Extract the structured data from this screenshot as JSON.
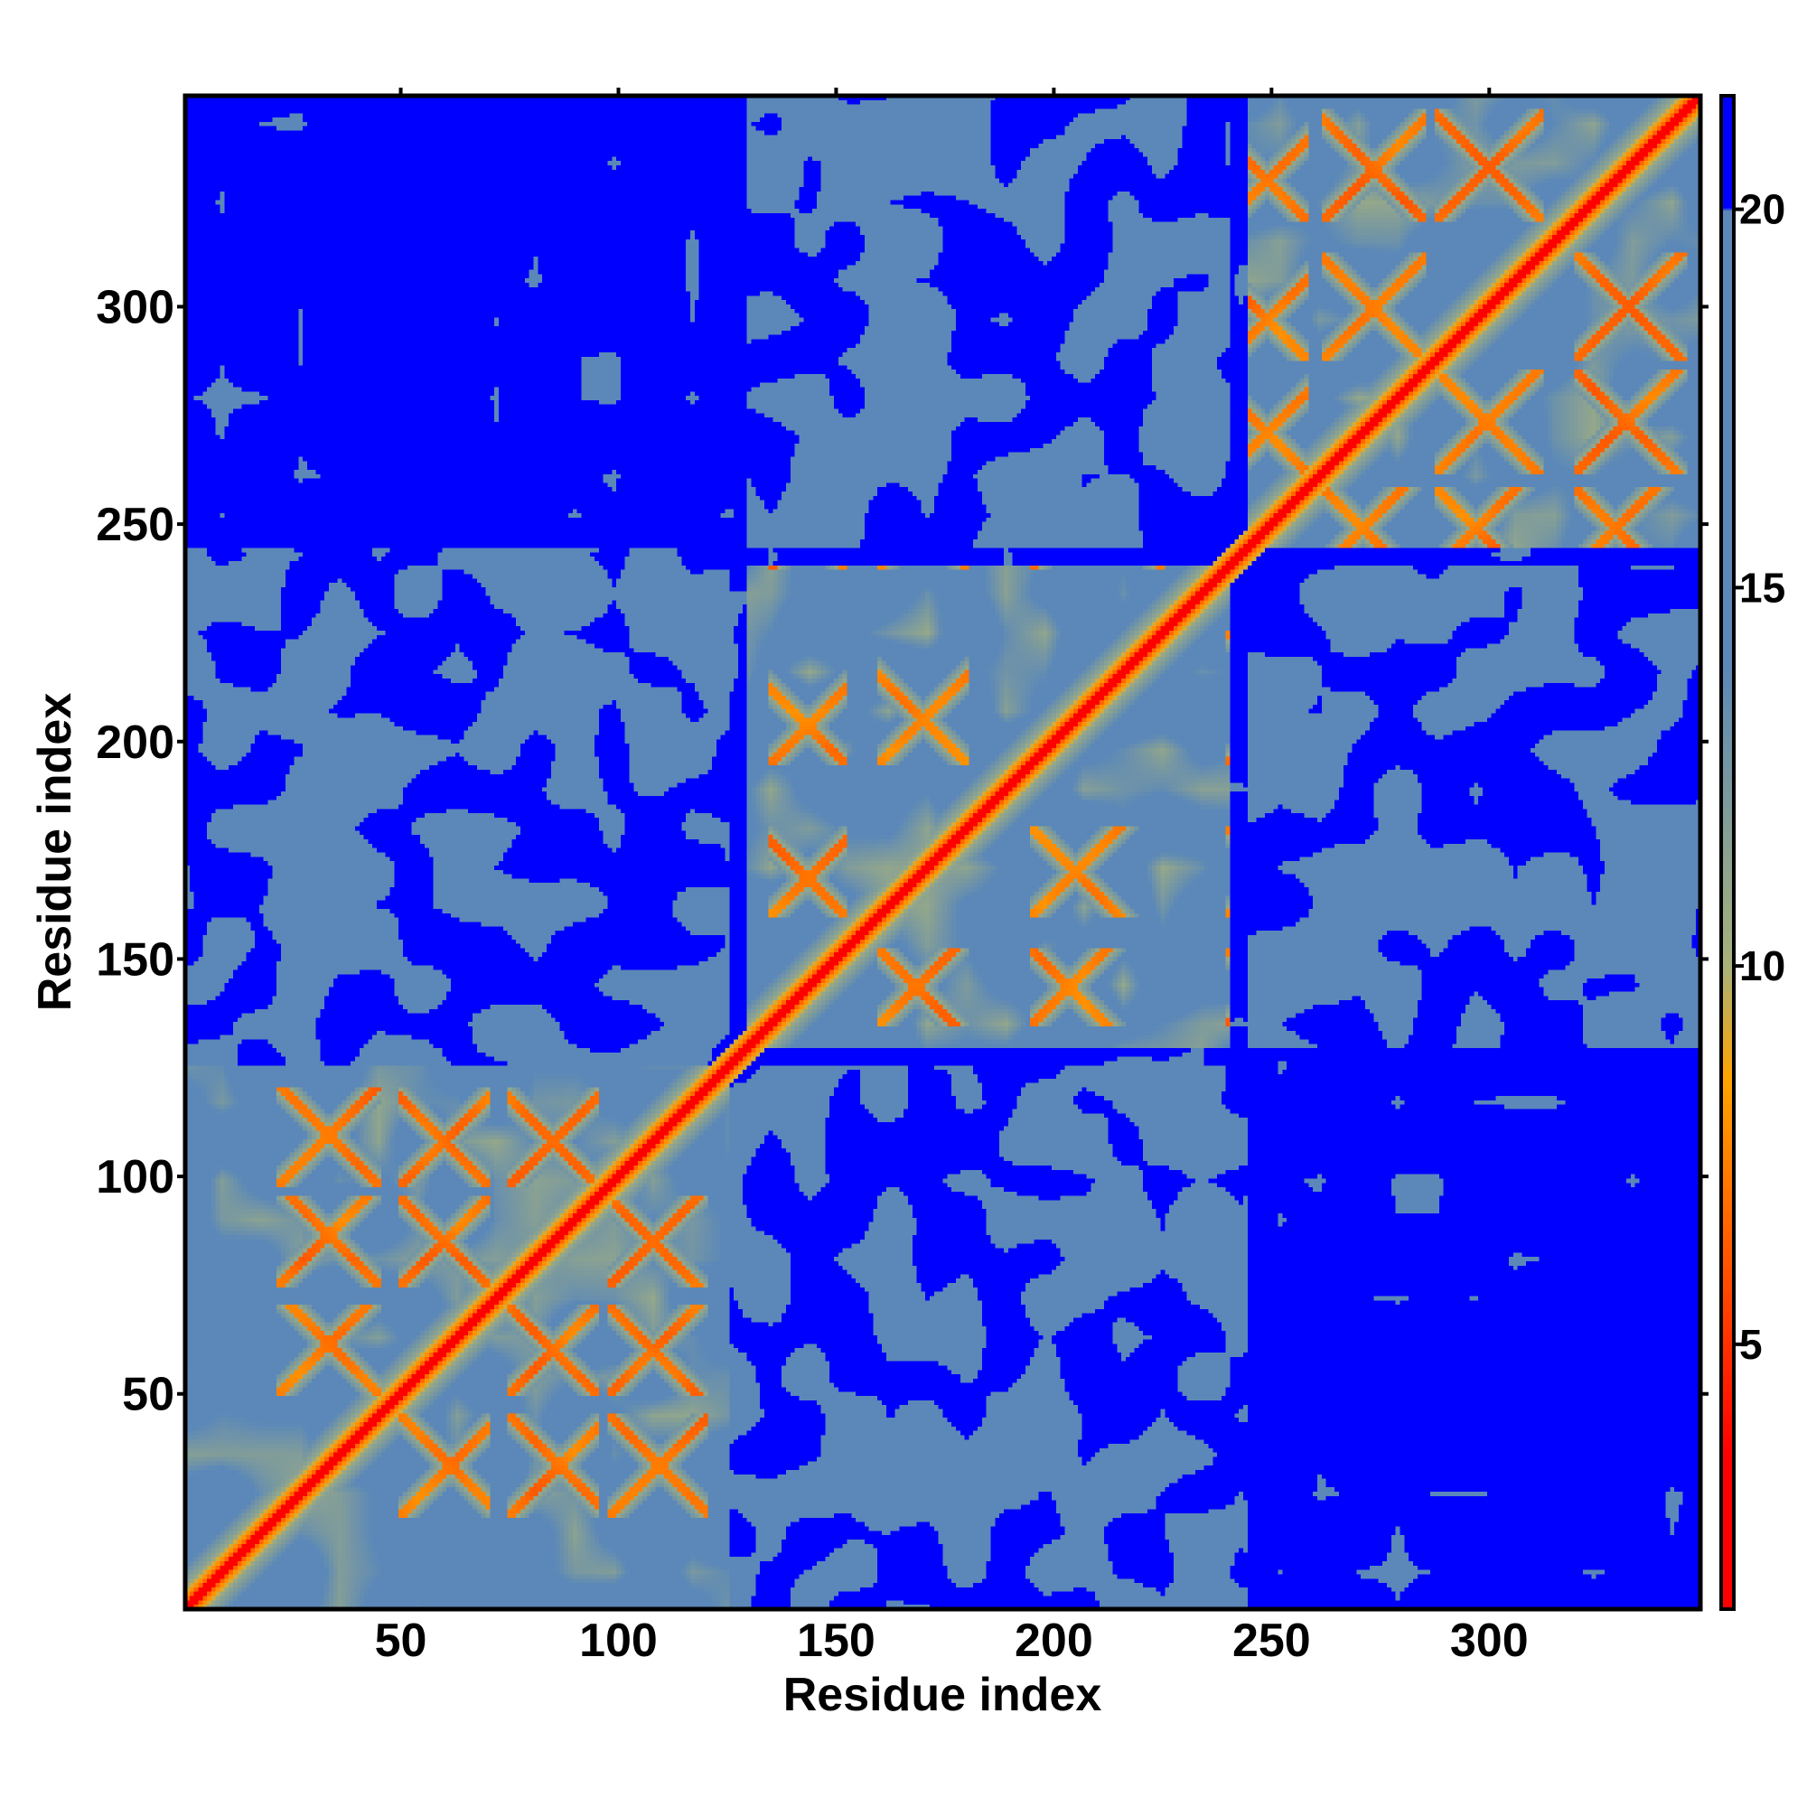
{
  "chart_data": {
    "type": "heatmap",
    "title": "",
    "xlabel": "Residue index",
    "ylabel": "Residue index",
    "x_range": [
      1,
      348
    ],
    "y_range": [
      1,
      348
    ],
    "x_ticks": [
      50,
      100,
      150,
      200,
      250,
      300
    ],
    "y_ticks": [
      50,
      100,
      150,
      200,
      250,
      300
    ],
    "colorbar": {
      "range": [
        1.5,
        21.5
      ],
      "ticks": [
        5,
        10,
        15,
        20
      ],
      "cutoff": 8.5,
      "colors": {
        "near": "#ff0000",
        "mid": "#ffa500",
        "light": "#a8b27a",
        "far": "#5b88b8",
        "beyond": "#0000ff"
      }
    },
    "symmetric": true,
    "diagonal_value": 0,
    "contact_helices": [
      {
        "start": 22,
        "end": 45
      },
      {
        "start": 50,
        "end": 70
      },
      {
        "start": 75,
        "end": 95
      },
      {
        "start": 98,
        "end": 120
      },
      {
        "start": 135,
        "end": 152
      },
      {
        "start": 160,
        "end": 180
      },
      {
        "start": 195,
        "end": 225
      },
      {
        "start": 240,
        "end": 258
      },
      {
        "start": 262,
        "end": 285
      },
      {
        "start": 288,
        "end": 312
      },
      {
        "start": 320,
        "end": 345
      }
    ],
    "domains": [
      {
        "name": "",
        "start": 1,
        "end": 125
      },
      {
        "name": "",
        "start": 130,
        "end": 240
      },
      {
        "name": "",
        "start": 245,
        "end": 348
      }
    ]
  }
}
